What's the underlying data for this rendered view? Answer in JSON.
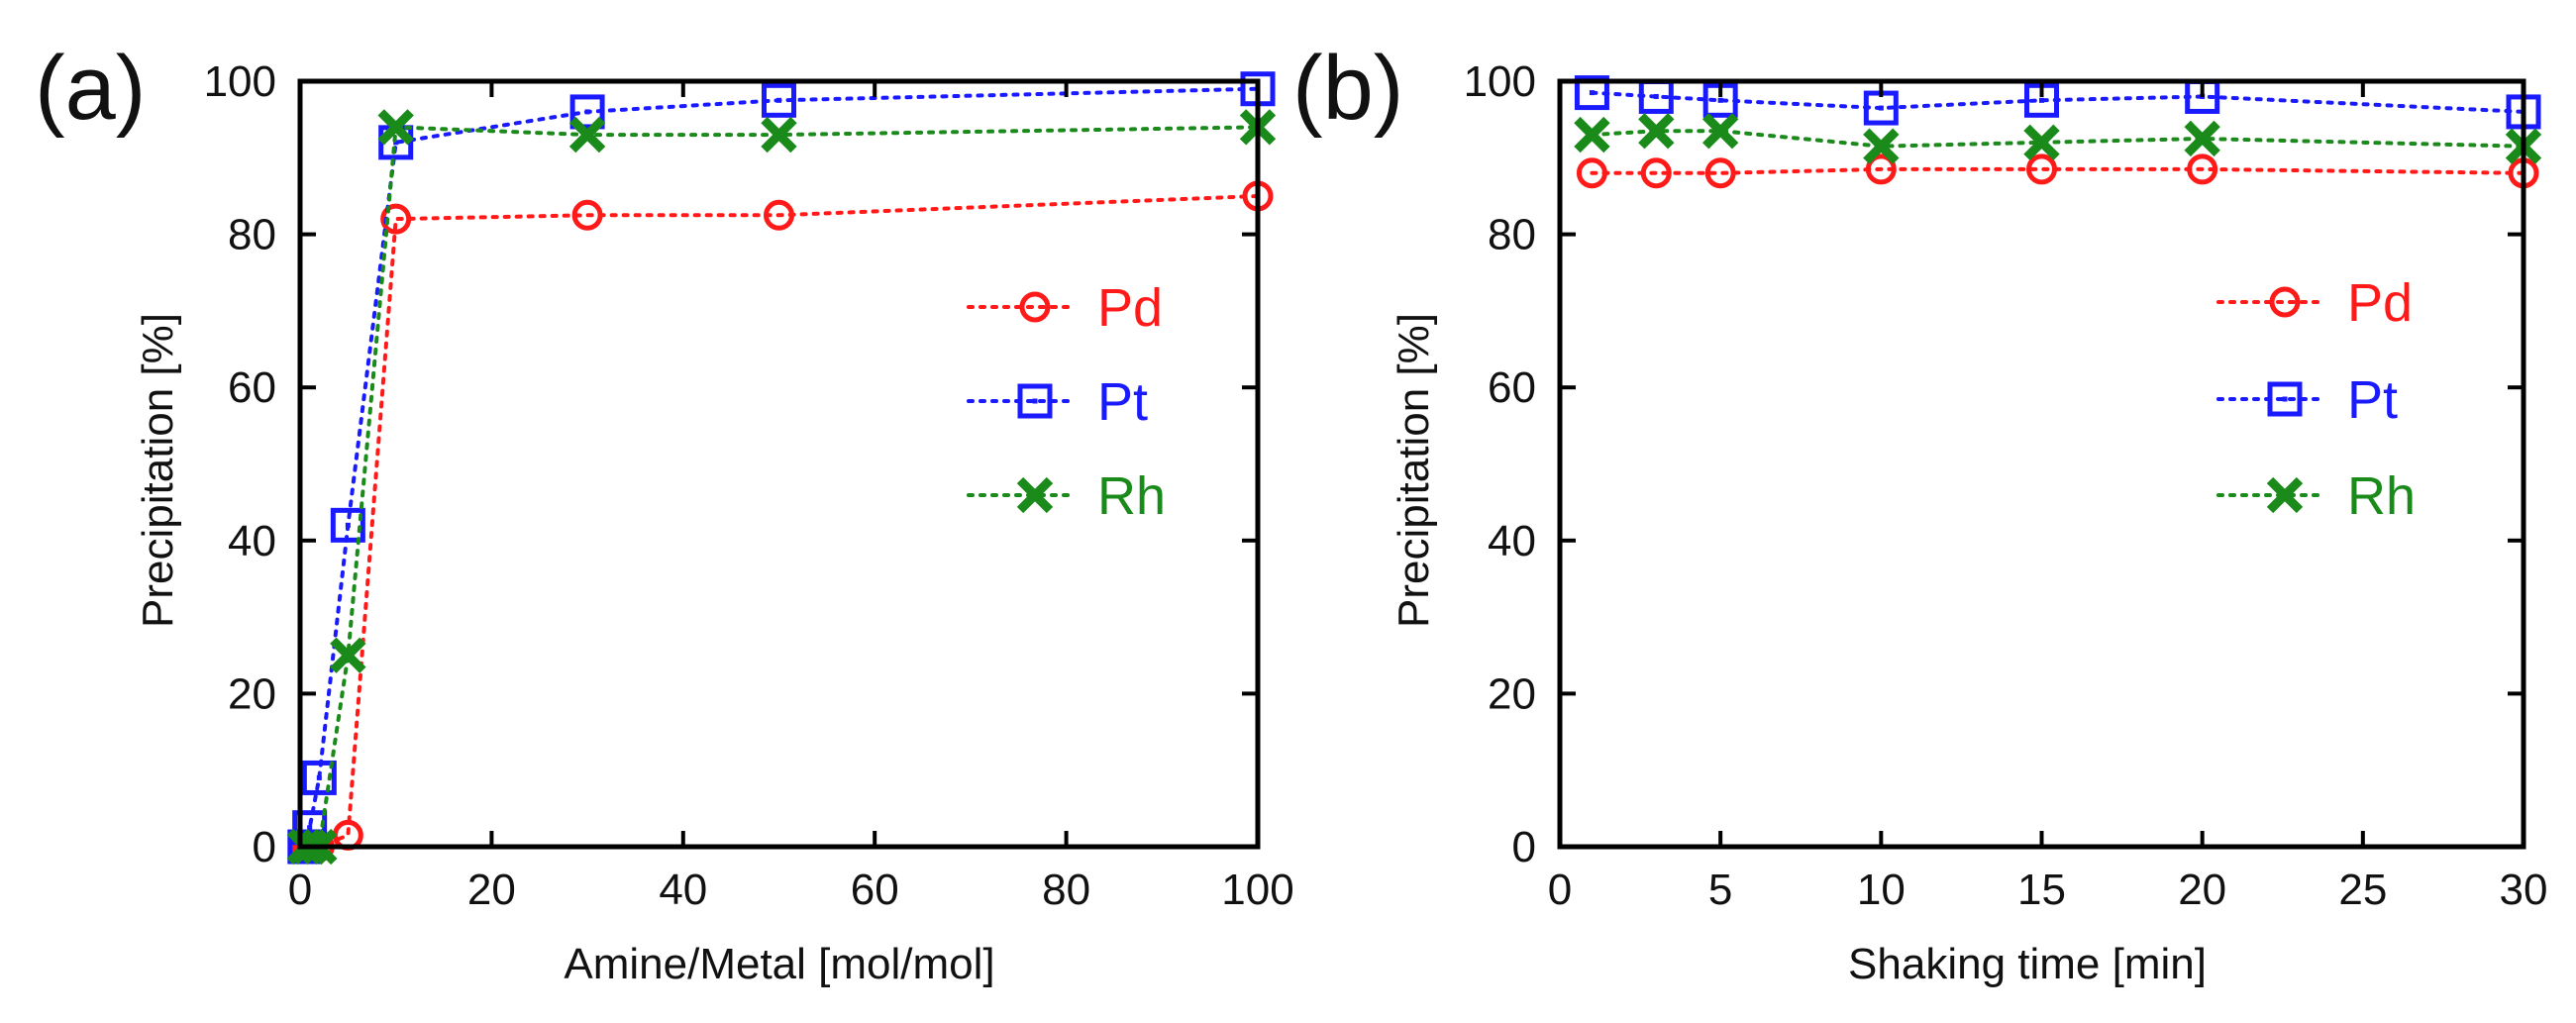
{
  "colors": {
    "Pd": "#ff1a1a",
    "Pt": "#1a1aff",
    "Rh": "#1a8a1a",
    "axis": "#000000",
    "text": "#111111"
  },
  "chart_data": [
    {
      "type": "scatter",
      "panel_label": "(a)",
      "xlabel": "Amine/Metal [mol/mol]",
      "ylabel": "Precipitation [%]",
      "xlim": [
        0,
        100
      ],
      "ylim": [
        0,
        100
      ],
      "xticks": [
        0,
        20,
        40,
        60,
        80,
        100
      ],
      "yticks": [
        0,
        20,
        40,
        60,
        80,
        100
      ],
      "xtick_labels": [
        "0",
        "20",
        "40",
        "60",
        "80",
        "100"
      ],
      "ytick_labels": [
        "0",
        "20",
        "40",
        "60",
        "80",
        "100"
      ],
      "line_style": "dotted",
      "legend_position": "center-right",
      "series": [
        {
          "name": "Pd",
          "marker": "circle",
          "x": [
            0.5,
            1,
            2,
            5,
            10,
            30,
            50,
            100
          ],
          "y": [
            0,
            0,
            0,
            1.5,
            82,
            82.5,
            82.5,
            85
          ]
        },
        {
          "name": "Pt",
          "marker": "square",
          "x": [
            0.5,
            1,
            2,
            5,
            10,
            30,
            50,
            100
          ],
          "y": [
            0,
            2.5,
            9,
            42,
            92,
            96,
            97.5,
            99
          ]
        },
        {
          "name": "Rh",
          "marker": "x",
          "x": [
            0.5,
            1,
            2,
            5,
            10,
            30,
            50,
            100
          ],
          "y": [
            0,
            0,
            0,
            25,
            94,
            93,
            93,
            94
          ]
        }
      ]
    },
    {
      "type": "scatter",
      "panel_label": "(b)",
      "xlabel": "Shaking time [min]",
      "ylabel": "Precipitation [%]",
      "xlim": [
        0,
        30
      ],
      "ylim": [
        0,
        100
      ],
      "xticks": [
        0,
        5,
        10,
        15,
        20,
        25,
        30
      ],
      "yticks": [
        0,
        20,
        40,
        60,
        80,
        100
      ],
      "xtick_labels": [
        "0",
        "5",
        "10",
        "15",
        "20",
        "25",
        "30"
      ],
      "ytick_labels": [
        "0",
        "20",
        "40",
        "60",
        "80",
        "100"
      ],
      "line_style": "dotted",
      "legend_position": "center-right",
      "series": [
        {
          "name": "Pd",
          "marker": "circle",
          "x": [
            1,
            3,
            5,
            10,
            15,
            20,
            30
          ],
          "y": [
            88,
            88,
            88,
            88.5,
            88.5,
            88.5,
            88
          ]
        },
        {
          "name": "Pt",
          "marker": "square",
          "x": [
            1,
            3,
            5,
            10,
            15,
            20,
            30
          ],
          "y": [
            98.5,
            98,
            97.5,
            96.5,
            97.5,
            98,
            96
          ]
        },
        {
          "name": "Rh",
          "marker": "x",
          "x": [
            1,
            3,
            5,
            10,
            15,
            20,
            30
          ],
          "y": [
            93,
            93.5,
            93.5,
            91.5,
            92,
            92.5,
            91.5
          ]
        }
      ]
    }
  ]
}
